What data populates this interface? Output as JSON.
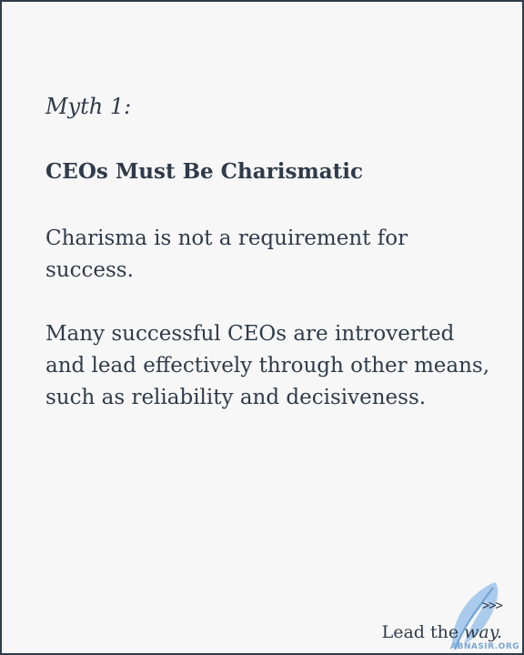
{
  "slide": {
    "myth_label": "Myth 1:",
    "headline": "CEOs Must Be Charismatic",
    "paragraph_1": "Charisma is not a requirement for success.",
    "paragraph_2": "Many successful CEOs are introverted and lead effectively through other means, such as reliability and decisiveness."
  },
  "footer": {
    "arrows": ">>>",
    "tagline_prefix": "Lead the ",
    "tagline_emphasis": "way."
  },
  "watermark": {
    "text": "ABNASIR.ORG",
    "icon": "feather-icon"
  },
  "colors": {
    "text": "#2f3b4a",
    "background": "#f7f7f7",
    "watermark": "#7aa6d6"
  }
}
